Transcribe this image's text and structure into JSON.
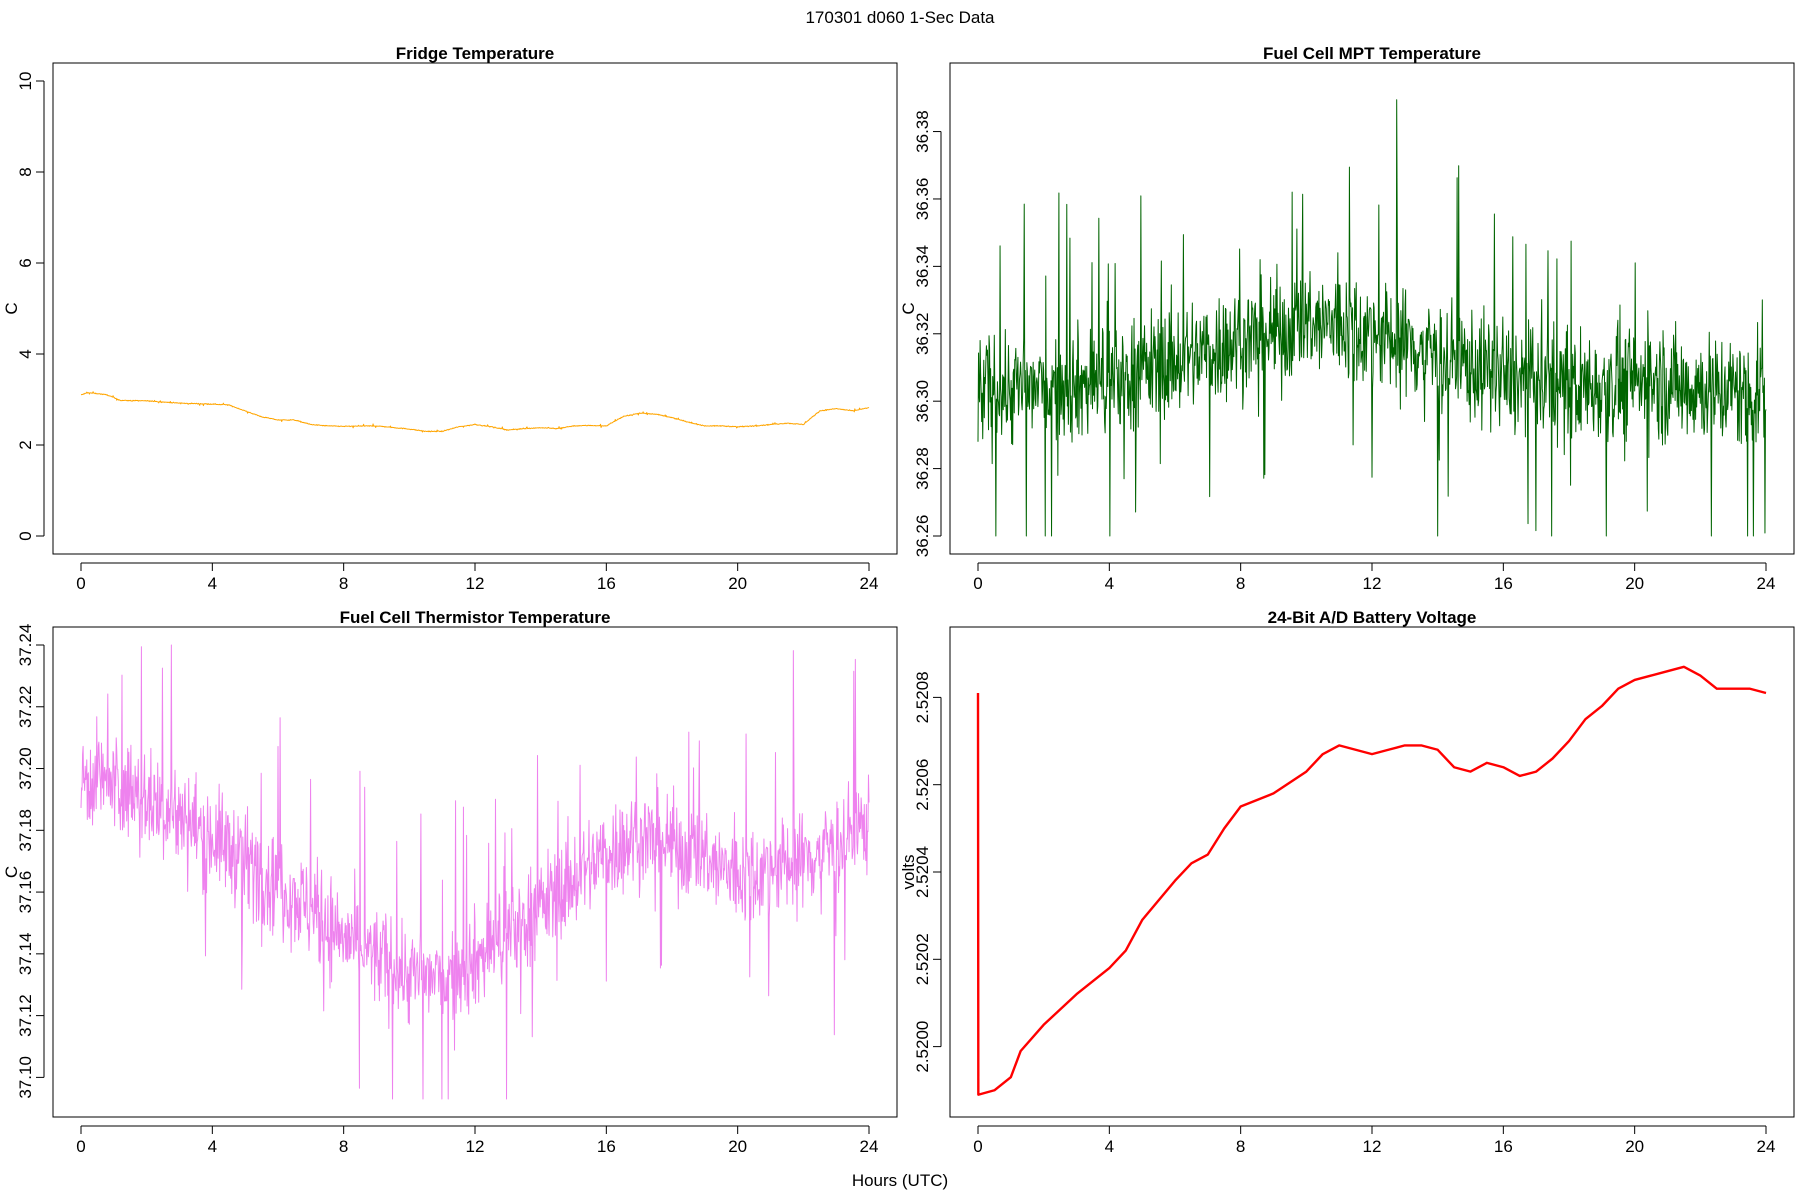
{
  "figure": {
    "supertitle": "170301   d060   1-Sec Data",
    "xlabel": "Hours (UTC)"
  },
  "chart_data": [
    {
      "type": "line",
      "title": "Fridge Temperature",
      "ylabel": "C",
      "color": "#FFA500",
      "noise": 0.015,
      "xlim": [
        0,
        24
      ],
      "ylim": [
        0,
        10
      ],
      "xticks": [
        0,
        4,
        8,
        12,
        16,
        20,
        24
      ],
      "xtick_labels": [
        "0",
        "4",
        "8",
        "12",
        "16",
        "20",
        "24"
      ],
      "yticks": [
        0,
        2,
        4,
        6,
        8,
        10
      ],
      "ytick_labels": [
        "0",
        "2",
        "4",
        "6",
        "8",
        "10"
      ],
      "series": [
        {
          "name": "Fridge Temperature",
          "x": [
            0,
            0.2,
            0.5,
            0.8,
            1.2,
            2,
            3,
            4,
            4.5,
            5,
            5.5,
            6,
            6.5,
            7,
            7.5,
            8,
            9,
            10,
            10.5,
            11,
            11.5,
            12,
            12.5,
            13,
            13.5,
            14,
            14.5,
            15,
            15.5,
            16,
            16.5,
            17,
            17.5,
            18,
            18.5,
            19,
            19.5,
            20,
            20.5,
            21,
            21.5,
            22,
            22.5,
            23,
            23.5,
            24
          ],
          "y": [
            3.1,
            3.15,
            3.13,
            3.1,
            2.98,
            2.97,
            2.92,
            2.9,
            2.88,
            2.75,
            2.62,
            2.55,
            2.55,
            2.45,
            2.42,
            2.41,
            2.42,
            2.35,
            2.3,
            2.3,
            2.4,
            2.45,
            2.4,
            2.33,
            2.36,
            2.38,
            2.36,
            2.42,
            2.43,
            2.42,
            2.62,
            2.7,
            2.68,
            2.6,
            2.5,
            2.42,
            2.42,
            2.4,
            2.42,
            2.45,
            2.48,
            2.45,
            2.75,
            2.8,
            2.75,
            2.82
          ]
        }
      ]
    },
    {
      "type": "line",
      "title": "Fuel Cell MPT Temperature",
      "ylabel": "C",
      "color": "#006400",
      "noise": 0.026,
      "xlim": [
        0,
        24
      ],
      "ylim": [
        36.26,
        36.395
      ],
      "xticks": [
        0,
        4,
        8,
        12,
        16,
        20,
        24
      ],
      "xtick_labels": [
        "0",
        "4",
        "8",
        "12",
        "16",
        "20",
        "24"
      ],
      "yticks": [
        36.26,
        36.28,
        36.3,
        36.32,
        36.34,
        36.36,
        36.38
      ],
      "ytick_labels": [
        "36.26",
        "36.28",
        "36.30",
        "36.32",
        "36.34",
        "36.36",
        "36.38"
      ],
      "series": [
        {
          "name": "Fuel Cell MPT Temperature",
          "x": [
            0,
            2,
            4,
            6,
            8,
            10,
            11,
            12,
            14,
            16,
            18,
            20,
            22,
            24
          ],
          "y": [
            36.303,
            36.304,
            36.306,
            36.312,
            36.318,
            36.322,
            36.323,
            36.32,
            36.314,
            36.307,
            36.304,
            36.306,
            36.304,
            36.302
          ]
        }
      ]
    },
    {
      "type": "line",
      "title": "Fuel Cell Thermistor Temperature",
      "ylabel": "C",
      "color": "#EE82EE",
      "noise": 0.025,
      "xlim": [
        0,
        24
      ],
      "ylim": [
        37.093,
        37.24
      ],
      "xticks": [
        0,
        4,
        8,
        12,
        16,
        20,
        24
      ],
      "xtick_labels": [
        "0",
        "4",
        "8",
        "12",
        "16",
        "20",
        "24"
      ],
      "yticks": [
        37.1,
        37.12,
        37.14,
        37.16,
        37.18,
        37.2,
        37.22,
        37.24
      ],
      "ytick_labels": [
        "37.10",
        "37.12",
        "37.14",
        "37.16",
        "37.18",
        "37.20",
        "37.22",
        "37.24"
      ],
      "series": [
        {
          "name": "Fuel Cell Thermistor Temperature",
          "x": [
            0,
            0.5,
            2,
            4,
            6,
            8,
            10,
            11,
            12,
            14,
            16,
            17,
            18,
            20,
            22,
            24
          ],
          "y": [
            37.196,
            37.197,
            37.19,
            37.178,
            37.163,
            37.145,
            37.133,
            37.132,
            37.138,
            37.155,
            37.173,
            37.178,
            37.175,
            37.165,
            37.17,
            37.182
          ]
        }
      ]
    },
    {
      "type": "line",
      "title": "24-Bit A/D Battery Voltage",
      "ylabel": "volts",
      "color": "#FF0000",
      "noise": 0,
      "xlim": [
        0,
        24
      ],
      "ylim": [
        2.51988,
        2.52092
      ],
      "xticks": [
        0,
        4,
        8,
        12,
        16,
        20,
        24
      ],
      "xtick_labels": [
        "0",
        "4",
        "8",
        "12",
        "16",
        "20",
        "24"
      ],
      "yticks": [
        2.52,
        2.5202,
        2.5204,
        2.5206,
        2.5208
      ],
      "ytick_labels": [
        "2.5200",
        "2.5202",
        "2.5204",
        "2.5206",
        "2.5208"
      ],
      "series": [
        {
          "name": "24-Bit A/D Battery Voltage",
          "x": [
            0,
            0.01,
            0.02,
            0.5,
            1,
            1.3,
            2,
            3,
            4,
            4.5,
            5,
            6,
            6.5,
            7,
            7.5,
            8,
            9,
            10,
            10.5,
            11,
            11.5,
            12,
            12.5,
            13,
            13.5,
            14,
            14.5,
            15,
            15.5,
            16,
            16.5,
            17,
            17.5,
            18,
            18.5,
            19,
            19.5,
            20,
            20.5,
            21,
            21.5,
            22,
            22.5,
            23,
            23.5,
            24
          ],
          "y": [
            2.52081,
            2.51989,
            2.51989,
            2.5199,
            2.51993,
            2.51999,
            2.52005,
            2.52012,
            2.52018,
            2.52022,
            2.52029,
            2.52038,
            2.52042,
            2.52044,
            2.5205,
            2.52055,
            2.52058,
            2.52063,
            2.52067,
            2.52069,
            2.52068,
            2.52067,
            2.52068,
            2.52069,
            2.52069,
            2.52068,
            2.52064,
            2.52063,
            2.52065,
            2.52064,
            2.52062,
            2.52063,
            2.52066,
            2.5207,
            2.52075,
            2.52078,
            2.52082,
            2.52084,
            2.52085,
            2.52086,
            2.52087,
            2.52085,
            2.52082,
            2.52082,
            2.52082,
            2.52081
          ]
        }
      ]
    }
  ]
}
